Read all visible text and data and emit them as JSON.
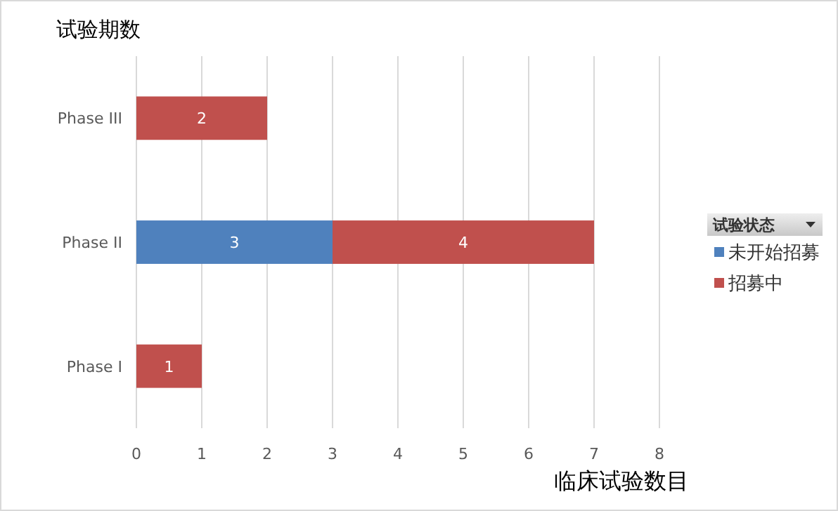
{
  "chart_data": {
    "type": "bar",
    "orientation": "horizontal",
    "stacked": true,
    "ylabel": "试验期数",
    "xlabel": "临床试验数目",
    "legend_title": "试验状态",
    "categories": [
      "Phase III",
      "Phase II",
      "Phase I"
    ],
    "series": [
      {
        "name": "未开始招募",
        "color": "#4f81bd",
        "values": [
          null,
          3,
          null
        ]
      },
      {
        "name": "招募中",
        "color": "#c0504d",
        "values": [
          2,
          4,
          1
        ]
      }
    ],
    "xlim": [
      0,
      8
    ],
    "xticks": [
      0,
      1,
      2,
      3,
      4,
      5,
      6,
      7,
      8
    ],
    "grid": "x",
    "legend": "right",
    "data_labels": true
  }
}
